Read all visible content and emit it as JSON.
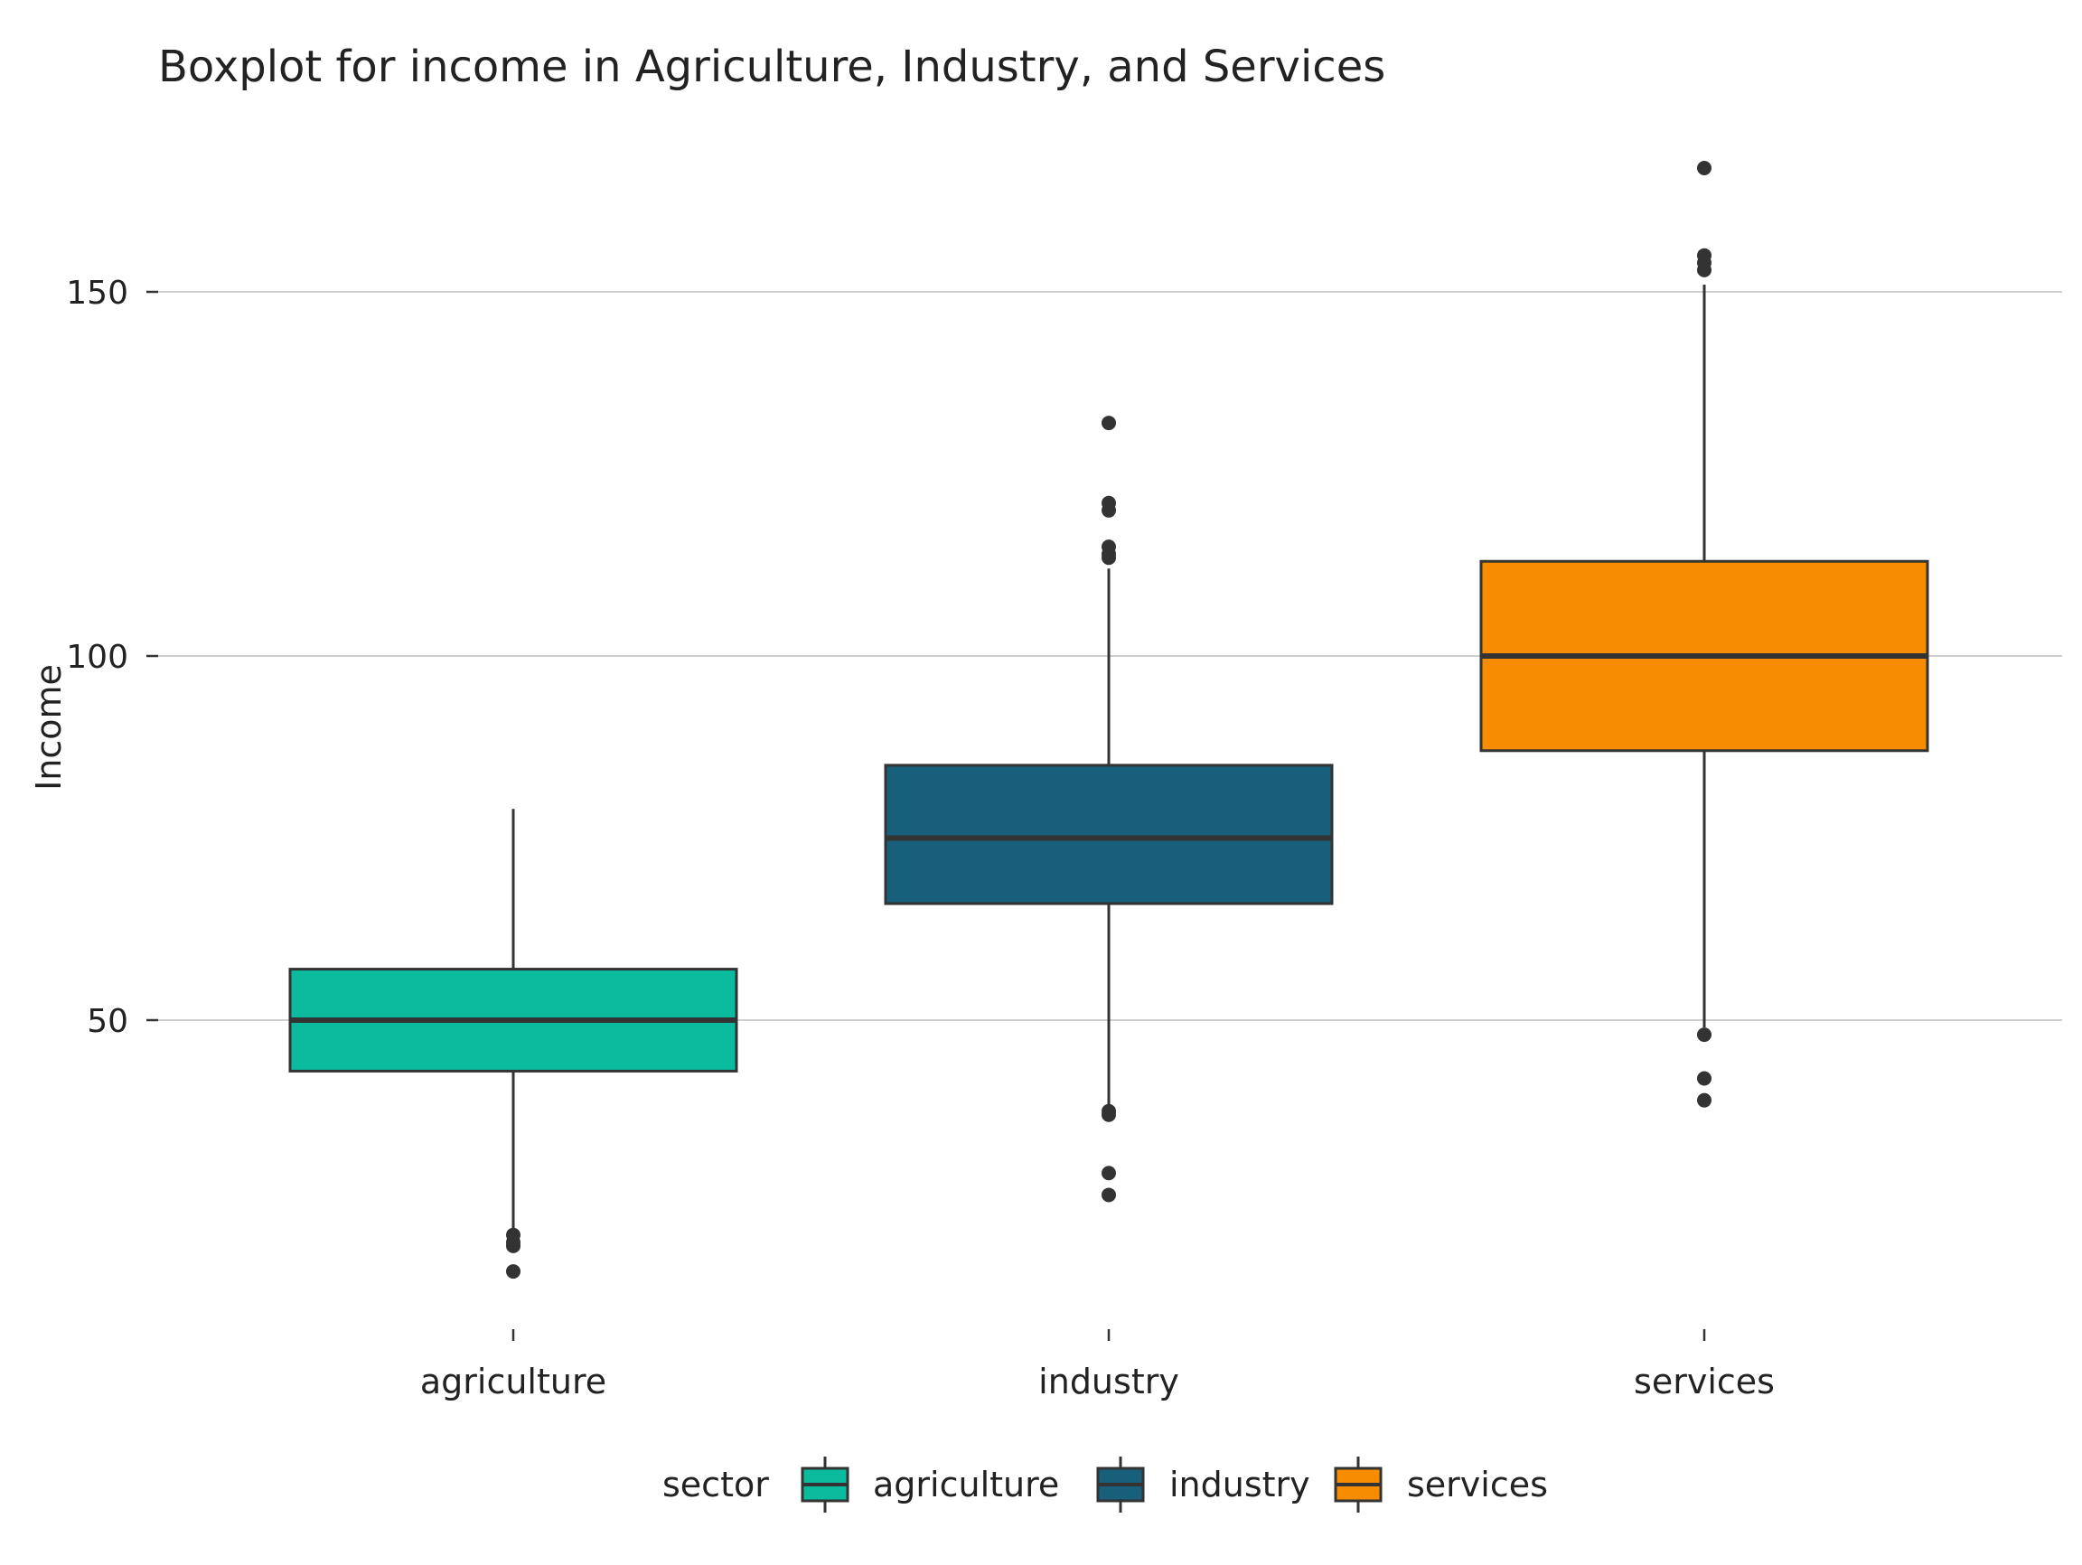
{
  "chart_data": {
    "type": "boxplot",
    "title": "Boxplot for income in Agriculture, Industry, and Services",
    "xlabel": "",
    "ylabel": "Income",
    "ylim": [
      10,
      170
    ],
    "yticks": [
      50,
      100,
      150
    ],
    "grid": "horizontal major",
    "legend": {
      "title": "sector",
      "position": "bottom",
      "entries": [
        "agriculture",
        "industry",
        "services"
      ]
    },
    "categories": [
      "agriculture",
      "industry",
      "services"
    ],
    "series": [
      {
        "name": "agriculture",
        "color": "#0abb9d",
        "lower_whisker": 21,
        "q1": 43,
        "median": 50,
        "q3": 57,
        "upper_whisker": 79,
        "outliers": [
          20.5,
          19.5,
          19.0,
          15.5
        ]
      },
      {
        "name": "industry",
        "color": "#175f7a",
        "lower_whisker": 38,
        "q1": 66,
        "median": 75,
        "q3": 85,
        "upper_whisker": 112,
        "outliers": [
          132,
          121,
          120,
          115,
          114,
          113.5,
          37.5,
          37,
          29,
          26
        ]
      },
      {
        "name": "services",
        "color": "#f78c00",
        "lower_whisker": 49,
        "q1": 87,
        "median": 100,
        "q3": 113,
        "upper_whisker": 151,
        "outliers": [
          167,
          155,
          154,
          153,
          48,
          42,
          39
        ]
      }
    ]
  }
}
